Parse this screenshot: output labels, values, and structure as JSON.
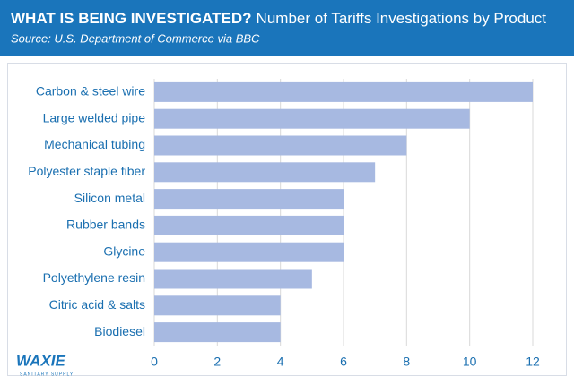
{
  "chart_data": {
    "type": "hbar",
    "title": "WHAT IS BEING INVESTIGATED?",
    "subtitle_title": "Number of Tariffs Investigations by Product",
    "source": "Source: U.S. Department of Commerce via BBC",
    "categories": [
      "Carbon & steel wire",
      "Large welded pipe",
      "Mechanical tubing",
      "Polyester staple fiber",
      "Silicon metal",
      "Rubber bands",
      "Glycine",
      "Polyethylene resin",
      "Citric acid & salts",
      "Biodiesel"
    ],
    "values": [
      12,
      10,
      8,
      7,
      6,
      6,
      6,
      5,
      4,
      4
    ],
    "color": "#a7b9e1",
    "xlim": [
      0,
      12
    ],
    "xticks": [
      0,
      2,
      4,
      6,
      8,
      10,
      12
    ],
    "grid": true,
    "logo": {
      "name": "WAXIE",
      "tagline": "SANITARY SUPPLY"
    }
  }
}
